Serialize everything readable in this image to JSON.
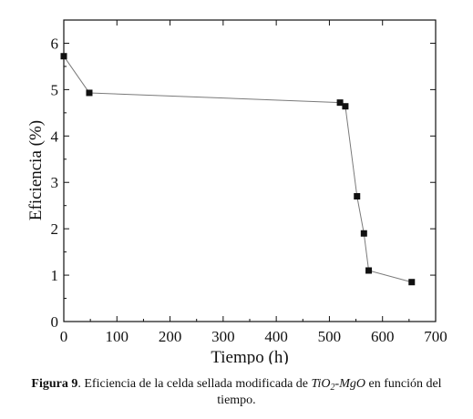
{
  "chart_data": {
    "type": "line",
    "xlabel": "Tiempo (h)",
    "ylabel": "Eficiencia (%)",
    "xlim": [
      0,
      700
    ],
    "ylim": [
      0,
      6.5
    ],
    "xticks": [
      0,
      100,
      200,
      300,
      400,
      500,
      600,
      700
    ],
    "yticks": [
      0,
      1,
      2,
      3,
      4,
      5,
      6
    ],
    "grid": false,
    "marker": "square",
    "colors": {
      "line": "#7a7a7a",
      "marker": "#111111",
      "axis": "#111111"
    },
    "series": [
      {
        "x": [
          0,
          48,
          520,
          530,
          552,
          565,
          574,
          655
        ],
        "y": [
          5.72,
          4.93,
          4.72,
          4.64,
          2.7,
          1.9,
          1.1,
          0.85
        ]
      }
    ]
  },
  "caption": {
    "label": "Figura 9",
    "text_before": ". Eficiencia de la celda sellada modificada de ",
    "formula_a": "TiO",
    "formula_sub": "2",
    "formula_b": "-MgO",
    "text_after": " en función del",
    "text_line2": "tiempo."
  }
}
